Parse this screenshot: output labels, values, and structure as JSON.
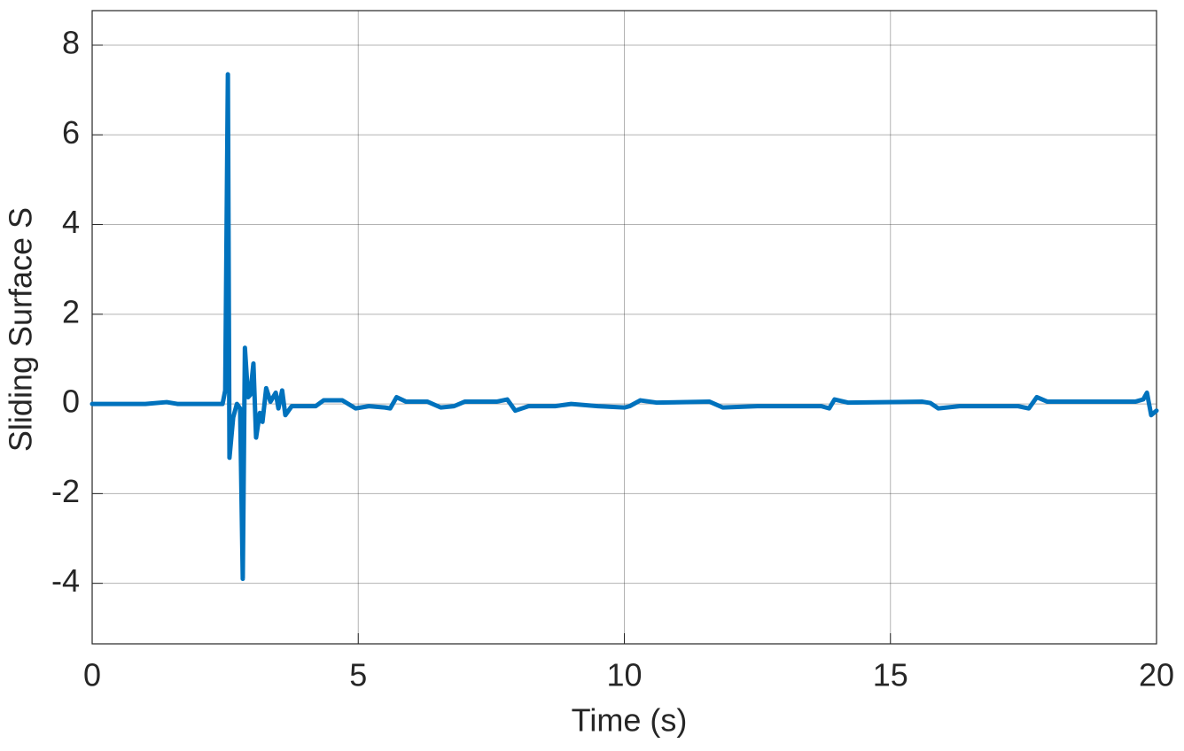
{
  "chart_data": {
    "type": "line",
    "x_label": "Time (s)",
    "y_label": "Sliding Surface S",
    "x": [
      0,
      1.0,
      1.4,
      1.6,
      2.45,
      2.5,
      2.55,
      2.58,
      2.65,
      2.72,
      2.78,
      2.83,
      2.87,
      2.93,
      2.97,
      3.03,
      3.08,
      3.15,
      3.2,
      3.27,
      3.35,
      3.45,
      3.5,
      3.57,
      3.63,
      3.75,
      4.0,
      4.2,
      4.35,
      4.7,
      4.95,
      5.2,
      5.5,
      5.6,
      5.72,
      5.9,
      6.3,
      6.55,
      6.8,
      7.0,
      7.6,
      7.8,
      7.95,
      8.2,
      8.7,
      9.0,
      9.5,
      10.0,
      10.1,
      10.3,
      10.6,
      11.6,
      11.85,
      12.5,
      13.7,
      13.85,
      13.95,
      14.2,
      15.6,
      15.75,
      15.9,
      16.3,
      17.4,
      17.6,
      17.75,
      17.95,
      19.6,
      19.75,
      19.82,
      19.9,
      20
    ],
    "values": [
      0,
      0,
      0.04,
      0,
      0,
      0.3,
      7.35,
      -1.2,
      -0.3,
      0,
      -0.1,
      -3.9,
      1.25,
      0.15,
      0.2,
      0.9,
      -0.75,
      -0.2,
      -0.4,
      0.35,
      0.05,
      0.25,
      -0.1,
      0.3,
      -0.25,
      -0.05,
      -0.05,
      -0.05,
      0.08,
      0.08,
      -0.1,
      -0.05,
      -0.08,
      -0.1,
      0.15,
      0.05,
      0.05,
      -0.08,
      -0.05,
      0.05,
      0.05,
      0.1,
      -0.15,
      -0.05,
      -0.05,
      0,
      -0.05,
      -0.08,
      -0.05,
      0.08,
      0.03,
      0.05,
      -0.08,
      -0.05,
      -0.05,
      -0.1,
      0.1,
      0.03,
      0.05,
      0.02,
      -0.1,
      -0.05,
      -0.05,
      -0.1,
      0.15,
      0.05,
      0.05,
      0.1,
      0.25,
      -0.25,
      -0.15
    ],
    "color": "#0072BD",
    "xlim": [
      0,
      20
    ],
    "xticks": [
      0,
      5,
      10,
      15,
      20
    ],
    "ylim": [
      -5.35,
      8.77
    ],
    "yticks": [
      -4,
      -2,
      0,
      2,
      4,
      6,
      8
    ],
    "grid": true
  }
}
